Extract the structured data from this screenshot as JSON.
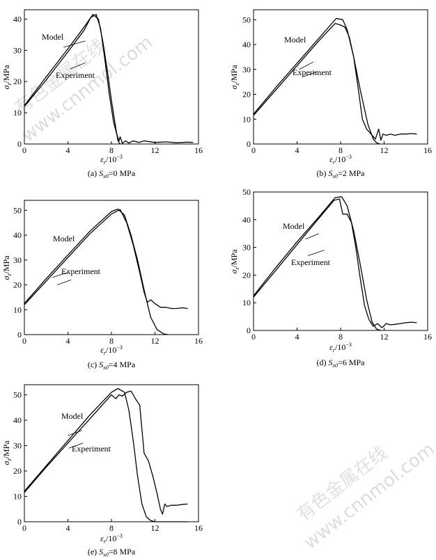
{
  "watermarks": [
    {
      "cn": "有色金属在线",
      "url": "www.cnnmol.com"
    },
    {
      "cn": "有色金属在线",
      "url": "www.cnnmol.com"
    }
  ],
  "chart_data": [
    {
      "type": "line",
      "caption_prefix": "(a)",
      "caption_symbol": "S",
      "caption_sub": "x0",
      "caption_value": "=0 MPa",
      "ylabel_symbol": "σ",
      "ylabel_sub": "z",
      "ylabel_unit": "/MPa",
      "xlabel_symbol": "ε",
      "xlabel_sub": "r",
      "xlabel_unit": "/10",
      "xlabel_exp": "−3",
      "xlim": [
        0,
        16
      ],
      "ylim": [
        0,
        43
      ],
      "xticks": [
        0,
        4,
        8,
        12,
        16
      ],
      "xtick_labels": [
        "0",
        "4",
        "8",
        "12",
        "16"
      ],
      "yticks": [
        0,
        10,
        20,
        30,
        40
      ],
      "ytick_labels": [
        "0",
        "10",
        "20",
        "30",
        "40"
      ],
      "annotations": {
        "model": "Model",
        "experiment": "Experiment"
      },
      "series": [
        {
          "name": "Model",
          "x": [
            0,
            2,
            4,
            5.5,
            6.3,
            6.8,
            7.2,
            7.6,
            8.0,
            8.4,
            8.6,
            8.8
          ],
          "y": [
            12.3,
            21.5,
            30.5,
            37.5,
            41.5,
            40,
            33,
            24,
            14,
            5,
            1,
            0
          ]
        },
        {
          "name": "Experiment",
          "x": [
            0,
            2,
            4,
            5.5,
            6.1,
            6.6,
            7.0,
            7.4,
            7.8,
            8.2,
            8.5,
            8.7,
            8.8,
            9.0,
            9.3,
            9.6,
            10,
            10.5,
            11,
            12,
            13,
            14,
            15,
            15.5
          ],
          "y": [
            12,
            20.5,
            29.5,
            36.5,
            40.5,
            41.5,
            37,
            27,
            16,
            7,
            3,
            1,
            2.3,
            0.2,
            1,
            0.3,
            1,
            0.5,
            1,
            0.5,
            0.7,
            0.4,
            0.6,
            0.5
          ]
        }
      ]
    },
    {
      "type": "line",
      "caption_prefix": "(b)",
      "caption_symbol": "S",
      "caption_sub": "x0",
      "caption_value": "=2 MPa",
      "ylabel_symbol": "σ",
      "ylabel_sub": "z",
      "ylabel_unit": "/MPa",
      "xlabel_symbol": "ε",
      "xlabel_sub": "r",
      "xlabel_unit": "/10",
      "xlabel_exp": "−3",
      "xlim": [
        0,
        16
      ],
      "ylim": [
        0,
        54
      ],
      "xticks": [
        0,
        4,
        8,
        12,
        16
      ],
      "xtick_labels": [
        "0",
        "4",
        "8",
        "12",
        "16"
      ],
      "yticks": [
        0,
        10,
        20,
        30,
        40,
        50
      ],
      "ytick_labels": [
        "0",
        "10",
        "20",
        "30",
        "40",
        "50"
      ],
      "annotations": {
        "model": "Model",
        "experiment": "Experiment"
      },
      "series": [
        {
          "name": "Model",
          "x": [
            0,
            2,
            4,
            6,
            7.6,
            8.2,
            8.6,
            9.2,
            9.8,
            10.5,
            11.0,
            11.3,
            11.6
          ],
          "y": [
            12,
            22.5,
            32.5,
            42.5,
            50.5,
            50,
            46,
            35,
            22,
            8,
            2,
            0.5,
            0
          ]
        },
        {
          "name": "Experiment",
          "x": [
            0,
            2,
            4,
            6,
            7.5,
            7.9,
            8.4,
            8.8,
            9.2,
            9.6,
            10.0,
            10.4,
            10.8,
            11.2,
            11.5,
            11.7,
            11.9,
            12.2,
            12.6,
            13,
            13.5,
            14,
            14.5,
            15
          ],
          "y": [
            11.5,
            21.5,
            31.5,
            41.5,
            48.5,
            48,
            47,
            43,
            35,
            23,
            10,
            6,
            4,
            2,
            6,
            1.5,
            4,
            3.5,
            4,
            3.5,
            4,
            4,
            4.2,
            4
          ]
        }
      ]
    },
    {
      "type": "line",
      "caption_prefix": "(c)",
      "caption_symbol": "S",
      "caption_sub": "x0",
      "caption_value": "=4 MPa",
      "ylabel_symbol": "σ",
      "ylabel_sub": "z",
      "ylabel_unit": "/MPa",
      "xlabel_symbol": "ε",
      "xlabel_sub": "r",
      "xlabel_unit": "/10",
      "xlabel_exp": "−3",
      "xlim": [
        0,
        16
      ],
      "ylim": [
        0,
        54
      ],
      "xticks": [
        0,
        4,
        8,
        12,
        16
      ],
      "xtick_labels": [
        "0",
        "4",
        "8",
        "12",
        "16"
      ],
      "yticks": [
        0,
        10,
        20,
        30,
        40,
        50
      ],
      "ytick_labels": [
        "0",
        "10",
        "20",
        "30",
        "40",
        "50"
      ],
      "annotations": {
        "model": "Model",
        "experiment": "Experiment"
      },
      "series": [
        {
          "name": "Model",
          "x": [
            0,
            2,
            4,
            6,
            8,
            8.6,
            9.2,
            9.8,
            10.4,
            11.0,
            11.6,
            12.2,
            12.8,
            13.2
          ],
          "y": [
            12.5,
            22.5,
            32,
            41.5,
            49.5,
            50.5,
            48,
            40,
            30,
            18,
            7,
            2,
            0.3,
            0
          ]
        },
        {
          "name": "Experiment",
          "x": [
            0,
            2,
            4,
            6,
            8,
            8.8,
            9.4,
            10.0,
            10.6,
            11.0,
            11.3,
            11.6,
            12.0,
            12.5,
            13,
            13.5,
            14,
            14.5,
            15
          ],
          "y": [
            12,
            21.5,
            31,
            40.5,
            48.5,
            50.3,
            45,
            36,
            25,
            17,
            13,
            14,
            12.5,
            11,
            11,
            10.5,
            10.5,
            10.8,
            10.5
          ]
        }
      ]
    },
    {
      "type": "line",
      "caption_prefix": "(d)",
      "caption_symbol": "S",
      "caption_sub": "x0",
      "caption_value": "=6 MPa",
      "ylabel_symbol": "σ",
      "ylabel_sub": "z",
      "ylabel_unit": "/MPa",
      "xlabel_symbol": "ε",
      "xlabel_sub": "r",
      "xlabel_unit": "/10",
      "xlabel_exp": "−3",
      "xlim": [
        0,
        16
      ],
      "ylim": [
        0,
        50
      ],
      "xticks": [
        0,
        4,
        8,
        12,
        16
      ],
      "xtick_labels": [
        "0",
        "4",
        "8",
        "12",
        "16"
      ],
      "yticks": [
        0,
        10,
        20,
        30,
        40,
        50
      ],
      "ytick_labels": [
        "0",
        "10",
        "20",
        "30",
        "40",
        "50"
      ],
      "annotations": {
        "model": "Model",
        "experiment": "Experiment"
      },
      "series": [
        {
          "name": "Model",
          "x": [
            0,
            2,
            4,
            6,
            7.5,
            8.1,
            8.6,
            9.2,
            9.8,
            10.4,
            10.9,
            11.3,
            11.7
          ],
          "y": [
            12.5,
            22.5,
            32,
            41,
            48,
            48.3,
            45,
            36,
            24,
            11,
            3,
            0.5,
            0
          ]
        },
        {
          "name": "Experiment",
          "x": [
            0,
            2,
            4,
            6,
            7.4,
            7.9,
            8.2,
            8.6,
            9.0,
            9.4,
            9.8,
            10.2,
            10.6,
            11.0,
            11.4,
            11.8,
            12.2,
            12.6,
            13,
            13.5,
            14,
            14.5,
            15
          ],
          "y": [
            12,
            21.5,
            31,
            40.5,
            47,
            47.5,
            42,
            42,
            39,
            30,
            19,
            9,
            4,
            1.5,
            2.5,
            1,
            2.5,
            2,
            2.2,
            2.5,
            2.8,
            3,
            2.8
          ]
        }
      ]
    },
    {
      "type": "line",
      "caption_prefix": "(e)",
      "caption_symbol": "S",
      "caption_sub": "x0",
      "caption_value": "=8 MPa",
      "ylabel_symbol": "σ",
      "ylabel_sub": "z",
      "ylabel_unit": "/MPa",
      "xlabel_symbol": "ε",
      "xlabel_sub": "r",
      "xlabel_unit": "/10",
      "xlabel_exp": "−3",
      "xlim": [
        0,
        16
      ],
      "ylim": [
        0,
        54
      ],
      "xticks": [
        0,
        4,
        8,
        12,
        16
      ],
      "xtick_labels": [
        "0",
        "4",
        "8",
        "12",
        "16"
      ],
      "yticks": [
        0,
        10,
        20,
        30,
        40,
        50
      ],
      "ytick_labels": [
        "0",
        "10",
        "20",
        "30",
        "40",
        "50"
      ],
      "annotations": {
        "model": "Model",
        "experiment": "Experiment"
      },
      "series": [
        {
          "name": "Model",
          "x": [
            0,
            2,
            4,
            6,
            8,
            8.6,
            9.2,
            9.6,
            10.0,
            10.4,
            10.8,
            11.2,
            11.6,
            12,
            13,
            14,
            15
          ],
          "y": [
            12,
            22,
            32,
            42,
            51,
            52.5,
            51,
            44,
            32,
            18,
            7,
            2,
            0.5,
            0,
            0,
            0,
            0
          ]
        },
        {
          "name": "Experiment",
          "x": [
            0,
            2,
            4,
            6,
            8,
            8.4,
            8.7,
            9.0,
            9.4,
            9.8,
            10.2,
            10.6,
            11.0,
            11.4,
            11.8,
            12.2,
            12.5,
            12.7,
            12.9,
            13.1,
            13.5,
            14,
            14.5,
            15
          ],
          "y": [
            11.5,
            21.5,
            31,
            40.5,
            50,
            48.5,
            50,
            49.5,
            51,
            51.5,
            48.5,
            46,
            27,
            24,
            18,
            11,
            5,
            3,
            7,
            6,
            6.5,
            6.5,
            6.8,
            7
          ]
        }
      ]
    }
  ]
}
